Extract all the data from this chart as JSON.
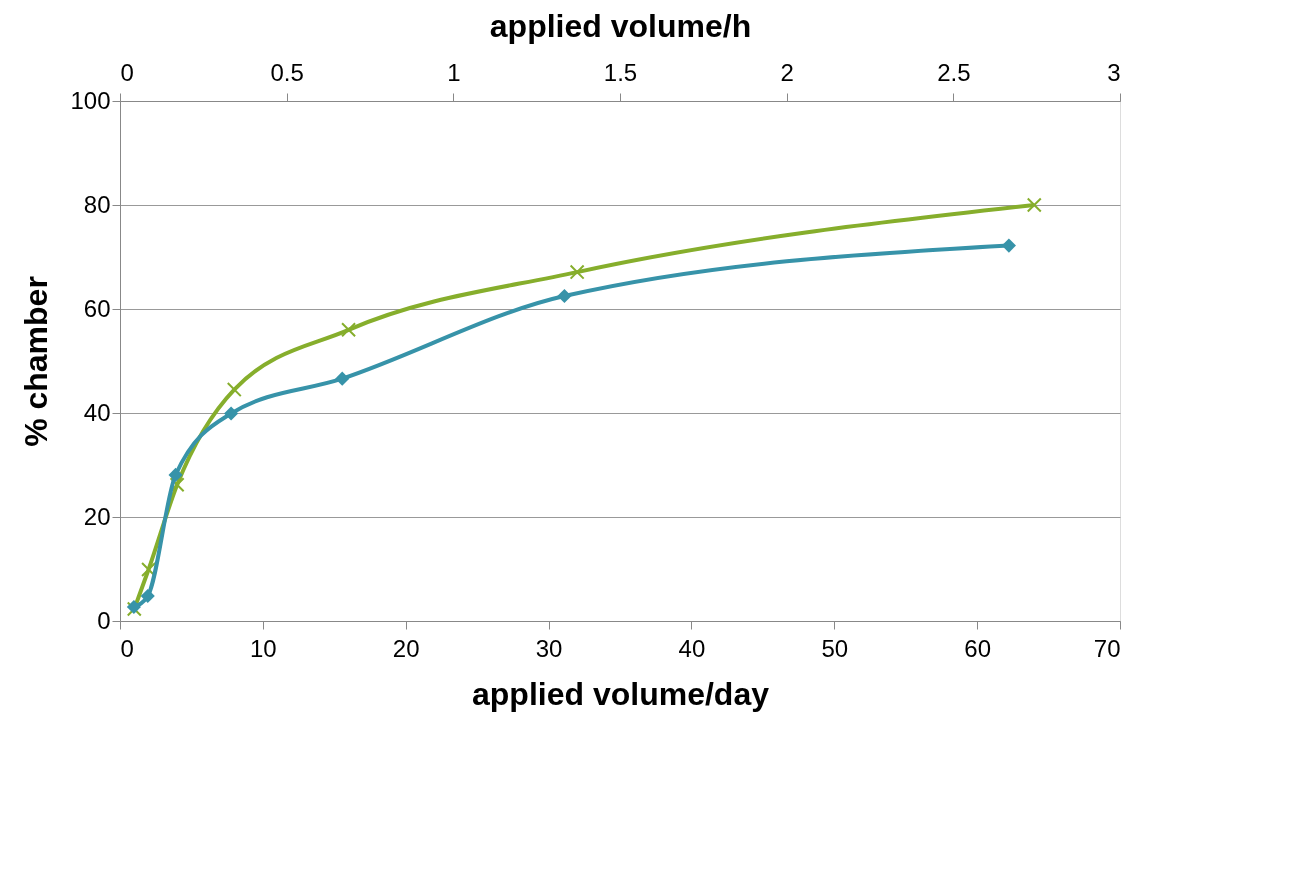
{
  "chart_data": {
    "type": "line",
    "xlabel": "applied volume/day",
    "x2label": "applied volume/h",
    "ylabel": "% chamber",
    "xlim": [
      0,
      70
    ],
    "xticks": [
      0,
      10,
      20,
      30,
      40,
      50,
      60,
      70
    ],
    "x2lim": [
      0,
      3
    ],
    "x2ticks": [
      0,
      0.5,
      1,
      1.5,
      2,
      2.5,
      3
    ],
    "ylim": [
      0,
      100
    ],
    "yticks": [
      0,
      20,
      40,
      60,
      80,
      100
    ],
    "grid": "y",
    "series": [
      {
        "color": "#86ae2c",
        "marker": "cross",
        "x": [
          1,
          2,
          4,
          8,
          16,
          32,
          64
        ],
        "values": [
          2.3,
          9.9,
          26.2,
          44.5,
          56,
          67.1,
          80
        ]
      },
      {
        "color": "#3793a9",
        "marker": "diamond",
        "axis": "x2",
        "x": [
          0.0417,
          0.0833,
          0.1667,
          0.3333,
          0.6667,
          1.3333,
          2.6667
        ],
        "values": [
          2.7,
          4.8,
          28.1,
          39.9,
          46.6,
          62.5,
          72.2
        ]
      }
    ]
  }
}
